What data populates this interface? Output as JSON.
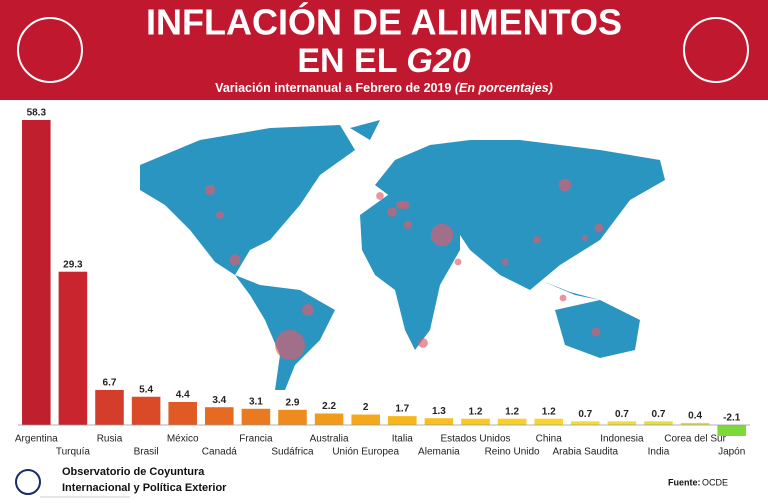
{
  "chart_data": {
    "type": "bar",
    "title_line1": "INFLACIÓN DE ALIMENTOS",
    "title_line2": "EN EL ",
    "title_emphasis": "G20",
    "subtitle": "Variación internanual a Febrero de 2019",
    "subtitle_note": "(En porcentajes)",
    "categories": [
      "Argentina",
      "Turquía",
      "Rusia",
      "Brasil",
      "México",
      "Canadá",
      "Francia",
      "Sudáfrica",
      "Australia",
      "Unión Europea",
      "Italia",
      "Alemania",
      "Estados Unidos",
      "Reino Unido",
      "China",
      "Arabia Saudita",
      "Indonesia",
      "India",
      "Corea del Sur",
      "Japón"
    ],
    "values": [
      58.3,
      29.3,
      6.7,
      5.4,
      4.4,
      3.4,
      3.1,
      2.9,
      2.2,
      2,
      1.7,
      1.3,
      1.2,
      1.2,
      1.2,
      0.7,
      0.7,
      0.7,
      0.4,
      -2.1
    ],
    "colors": [
      "#c0202e",
      "#c8252f",
      "#d43c2b",
      "#da4a28",
      "#e05a25",
      "#e66a22",
      "#ea7a20",
      "#ee8a1e",
      "#f29a1c",
      "#f5a91a",
      "#f7b61c",
      "#f8c020",
      "#f9c824",
      "#facf28",
      "#fad52c",
      "#f7da30",
      "#f0dc38",
      "#e6de3c",
      "#d8e040",
      "#7dd83a"
    ],
    "footer_org_line1": "Observatorio de Coyuntura",
    "footer_org_line2": "Internacional y Política Exterior",
    "source_label": "Fuente:",
    "source": "OCDE"
  }
}
